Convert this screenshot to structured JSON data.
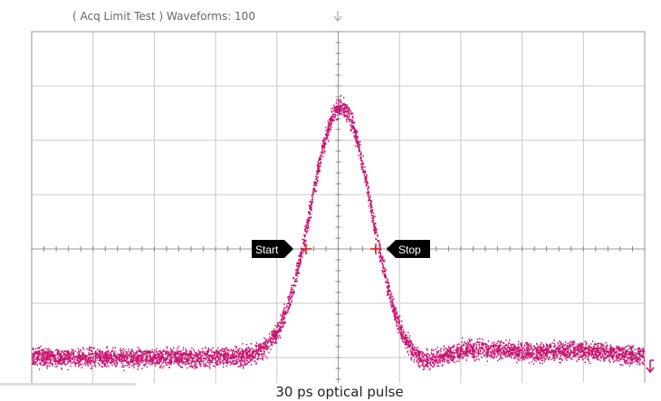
{
  "header": {
    "title": "( Acq Limit Test )  Waveforms: 100"
  },
  "markers": {
    "start": "Start",
    "stop": "Stop"
  },
  "caption": "30 ps optical pulse"
}
